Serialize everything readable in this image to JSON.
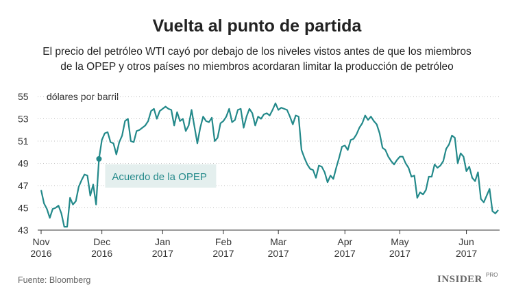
{
  "chart_data": {
    "type": "line",
    "title": "Vuelta al punto de partida",
    "subtitle": [
      "El precio del petróleo WTI cayó por debajo de los niveles vistos antes de que los miembros",
      "de la OPEP y otros países no miembros acordaran limitar la producción de petróleo"
    ],
    "y_label": "dólares por barril",
    "annotation": "Acuerdo de la OPEP",
    "source": "Fuente: Bloomberg",
    "logo": {
      "brand": "INSIDER",
      "tier": "PRO"
    },
    "categories": [
      "Nov 2016",
      null,
      null,
      null,
      null,
      null,
      null,
      null,
      null,
      null,
      null,
      null,
      null,
      null,
      null,
      null,
      null,
      null,
      null,
      null,
      null,
      "Dec 2016",
      null,
      null,
      null,
      null,
      null,
      null,
      null,
      null,
      null,
      null,
      null,
      null,
      null,
      null,
      null,
      null,
      null,
      null,
      null,
      null,
      "Jan 2017",
      null,
      null,
      null,
      null,
      null,
      null,
      null,
      null,
      null,
      null,
      null,
      null,
      null,
      null,
      null,
      null,
      null,
      null,
      null,
      null,
      "Feb 2017",
      null,
      null,
      null,
      null,
      null,
      null,
      null,
      null,
      null,
      null,
      null,
      null,
      null,
      null,
      null,
      null,
      null,
      null,
      "Mar 2017",
      null,
      null,
      null,
      null,
      null,
      null,
      null,
      null,
      null,
      null,
      null,
      null,
      null,
      null,
      null,
      null,
      null,
      null,
      null,
      null,
      null,
      null,
      "Apr 2017",
      null,
      null,
      null,
      null,
      null,
      null,
      null,
      null,
      null,
      null,
      null,
      null,
      null,
      null,
      null,
      null,
      null,
      null,
      "May 2017",
      null,
      null,
      null,
      null,
      null,
      null,
      null,
      null,
      null,
      null,
      null,
      null,
      null,
      null,
      null,
      null,
      null,
      null,
      null,
      null,
      null,
      null,
      "Jun 2017",
      null,
      null,
      null,
      null,
      null,
      null,
      null,
      null,
      null,
      null,
      null
    ],
    "series": [
      {
        "name": "WTI",
        "color": "#23898a",
        "values": [
          46.6,
          45.4,
          44.9,
          44.1,
          44.9,
          45.0,
          45.2,
          44.5,
          43.3,
          43.3,
          45.9,
          45.3,
          45.6,
          46.9,
          47.5,
          48.0,
          47.9,
          46.1,
          47.1,
          45.3,
          49.4,
          51.1,
          51.7,
          51.8,
          50.9,
          50.8,
          49.8,
          50.9,
          51.5,
          52.8,
          53.0,
          51.0,
          50.9,
          51.9,
          52.0,
          52.2,
          52.4,
          52.8,
          53.7,
          53.9,
          53.0,
          53.7,
          53.9,
          54.1,
          53.9,
          53.8,
          52.4,
          53.6,
          52.8,
          53.0,
          51.9,
          52.4,
          53.8,
          52.3,
          50.8,
          52.2,
          53.2,
          52.8,
          52.7,
          53.1,
          51.0,
          51.3,
          52.6,
          52.8,
          53.2,
          53.9,
          52.7,
          52.9,
          53.8,
          53.9,
          52.2,
          53.2,
          53.9,
          53.5,
          52.4,
          53.2,
          53.0,
          53.4,
          53.5,
          53.3,
          53.8,
          54.4,
          53.8,
          54.0,
          53.9,
          53.8,
          53.2,
          52.5,
          53.3,
          53.2,
          50.2,
          49.5,
          48.9,
          48.5,
          48.4,
          47.7,
          48.8,
          48.7,
          48.2,
          47.3,
          47.9,
          47.6,
          48.6,
          49.5,
          50.5,
          50.6,
          50.2,
          51.1,
          51.2,
          51.6,
          52.2,
          52.6,
          53.3,
          52.9,
          53.2,
          52.8,
          52.5,
          51.7,
          50.4,
          50.2,
          49.6,
          49.2,
          48.9,
          49.3,
          49.6,
          49.6,
          49.0,
          48.6,
          47.8,
          47.9,
          45.9,
          46.4,
          46.2,
          46.6,
          47.8,
          47.8,
          48.9,
          48.6,
          48.8,
          49.2,
          50.3,
          50.7,
          51.5,
          51.3,
          49.0,
          49.9,
          49.6,
          48.3,
          48.7,
          47.7,
          47.4,
          48.2,
          45.8,
          45.5,
          46.1,
          46.7,
          44.7,
          44.5,
          44.8
        ]
      }
    ],
    "ylim": [
      43,
      55
    ],
    "yticks": [
      43,
      45,
      47,
      49,
      51,
      53,
      55
    ],
    "grid": true
  }
}
